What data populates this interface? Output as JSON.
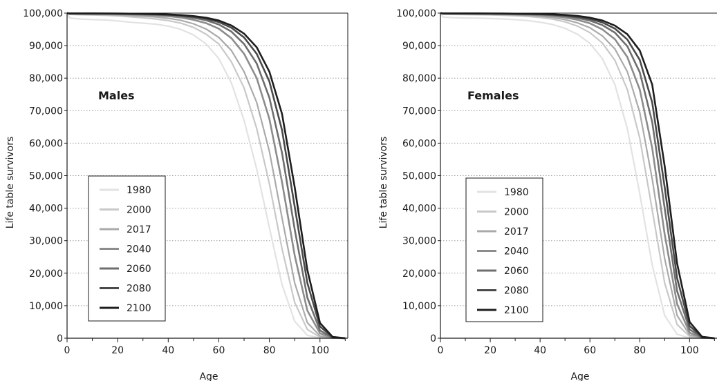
{
  "chart_data": [
    {
      "type": "line",
      "panel_label": "Males",
      "xlabel": "Age",
      "ylabel": "Life table survivors",
      "xlim": [
        0,
        111
      ],
      "ylim": [
        0,
        100000
      ],
      "x_ticks": [
        "0",
        "20",
        "40",
        "60",
        "80",
        "100"
      ],
      "y_ticks": [
        "0",
        "10,000",
        "20,000",
        "30,000",
        "40,000",
        "50,000",
        "60,000",
        "70,000",
        "80,000",
        "90,000",
        "100,000"
      ],
      "grid": "horizontal dotted",
      "legend_position": "lower-left",
      "x": [
        0,
        1,
        5,
        10,
        15,
        20,
        25,
        30,
        35,
        40,
        45,
        50,
        55,
        60,
        65,
        70,
        75,
        80,
        85,
        90,
        95,
        100,
        105,
        110
      ],
      "series": [
        {
          "name": "1980",
          "color": "#e2e2e2",
          "width": 2.2,
          "values": [
            100000,
            98500,
            98200,
            98000,
            97900,
            97600,
            97200,
            96900,
            96600,
            96000,
            95000,
            93300,
            90500,
            86000,
            78500,
            67000,
            52000,
            34000,
            16500,
            5200,
            900,
            100,
            0,
            0
          ]
        },
        {
          "name": "2000",
          "color": "#c8c8c8",
          "width": 2.2,
          "values": [
            100000,
            99600,
            99500,
            99400,
            99350,
            99150,
            98850,
            98550,
            98200,
            97700,
            96900,
            95600,
            93500,
            90500,
            85000,
            77000,
            64500,
            47500,
            27500,
            11000,
            2700,
            350,
            20,
            0
          ]
        },
        {
          "name": "2017",
          "color": "#aaaaaa",
          "width": 2.2,
          "values": [
            100000,
            99700,
            99650,
            99600,
            99550,
            99450,
            99250,
            99050,
            98800,
            98400,
            97800,
            96700,
            95100,
            92500,
            88500,
            82000,
            72500,
            57500,
            37000,
            17000,
            4800,
            700,
            40,
            0
          ]
        },
        {
          "name": "2040",
          "color": "#8c8c8c",
          "width": 2.6,
          "values": [
            100000,
            99800,
            99780,
            99760,
            99730,
            99680,
            99580,
            99450,
            99300,
            99050,
            98650,
            97950,
            96900,
            95200,
            92300,
            87500,
            80000,
            67500,
            48000,
            25500,
            8500,
            1500,
            100,
            0
          ]
        },
        {
          "name": "2060",
          "color": "#6e6e6e",
          "width": 2.6,
          "values": [
            100000,
            99850,
            99840,
            99830,
            99810,
            99780,
            99720,
            99630,
            99520,
            99350,
            99050,
            98550,
            97800,
            96500,
            94300,
            90500,
            84500,
            74000,
            57000,
            33500,
            12500,
            2400,
            200,
            0
          ]
        },
        {
          "name": "2080",
          "color": "#4a4a4a",
          "width": 2.6,
          "values": [
            100000,
            99900,
            99890,
            99880,
            99870,
            99840,
            99800,
            99730,
            99640,
            99510,
            99280,
            98880,
            98280,
            97250,
            95500,
            92500,
            87500,
            79000,
            64000,
            40500,
            17000,
            3600,
            300,
            0
          ]
        },
        {
          "name": "2100",
          "color": "#1e1e1e",
          "width": 2.6,
          "values": [
            100000,
            99920,
            99915,
            99910,
            99900,
            99880,
            99840,
            99790,
            99710,
            99600,
            99410,
            99080,
            98580,
            97720,
            96200,
            93700,
            89500,
            82000,
            69000,
            46500,
            21000,
            4700,
            400,
            0
          ]
        }
      ]
    },
    {
      "type": "line",
      "panel_label": "Females",
      "xlabel": "Age",
      "ylabel": "Life table survivors",
      "xlim": [
        0,
        111
      ],
      "ylim": [
        0,
        100000
      ],
      "x_ticks": [
        "0",
        "20",
        "40",
        "60",
        "80",
        "100"
      ],
      "y_ticks": [
        "0",
        "10,000",
        "20,000",
        "30,000",
        "40,000",
        "50,000",
        "60,000",
        "70,000",
        "80,000",
        "90,000",
        "100,000"
      ],
      "grid": "horizontal dotted",
      "legend_position": "lower-left",
      "x": [
        0,
        1,
        5,
        10,
        15,
        20,
        25,
        30,
        35,
        40,
        45,
        50,
        55,
        60,
        65,
        70,
        75,
        80,
        85,
        90,
        95,
        100,
        105,
        110
      ],
      "series": [
        {
          "name": "1980",
          "color": "#e2e2e2",
          "width": 2.2,
          "values": [
            100000,
            98800,
            98600,
            98500,
            98450,
            98350,
            98200,
            98000,
            97700,
            97200,
            96500,
            95300,
            93500,
            90700,
            86000,
            78000,
            64500,
            44500,
            22500,
            7000,
            1200,
            100,
            0,
            0
          ]
        },
        {
          "name": "2000",
          "color": "#c8c8c8",
          "width": 2.2,
          "values": [
            100000,
            99650,
            99600,
            99550,
            99500,
            99420,
            99320,
            99180,
            98980,
            98650,
            98150,
            97300,
            96000,
            94000,
            90800,
            85500,
            76500,
            61500,
            39500,
            17000,
            4200,
            500,
            30,
            0
          ]
        },
        {
          "name": "2017",
          "color": "#aaaaaa",
          "width": 2.2,
          "values": [
            100000,
            99750,
            99720,
            99690,
            99650,
            99600,
            99520,
            99420,
            99270,
            99030,
            98650,
            98000,
            97000,
            95500,
            93000,
            89000,
            82000,
            69500,
            49000,
            24500,
            7000,
            1000,
            60,
            0
          ]
        },
        {
          "name": "2040",
          "color": "#8c8c8c",
          "width": 2.6,
          "values": [
            100000,
            99830,
            99810,
            99790,
            99770,
            99740,
            99690,
            99620,
            99520,
            99360,
            99100,
            98650,
            97950,
            96850,
            95000,
            92000,
            86500,
            76500,
            58500,
            32000,
            10500,
            1700,
            120,
            0
          ]
        },
        {
          "name": "2060",
          "color": "#6e6e6e",
          "width": 2.6,
          "values": [
            100000,
            99880,
            99870,
            99860,
            99840,
            99820,
            99780,
            99730,
            99660,
            99550,
            99360,
            99040,
            98520,
            97700,
            96300,
            94000,
            89800,
            81800,
            66500,
            40000,
            14500,
            2700,
            220,
            0
          ]
        },
        {
          "name": "2080",
          "color": "#4a4a4a",
          "width": 2.6,
          "values": [
            100000,
            99910,
            99900,
            99890,
            99880,
            99860,
            99830,
            99790,
            99740,
            99660,
            99510,
            99260,
            98860,
            98220,
            97130,
            95250,
            91900,
            85600,
            72500,
            46500,
            18500,
            3800,
            350,
            0
          ]
        },
        {
          "name": "2100",
          "color": "#1e1e1e",
          "width": 2.6,
          "values": [
            100000,
            99930,
            99925,
            99920,
            99910,
            99895,
            99870,
            99840,
            99800,
            99740,
            99630,
            99440,
            99120,
            98600,
            97720,
            96150,
            93500,
            88500,
            78000,
            53000,
            23000,
            5000,
            450,
            0
          ]
        }
      ]
    }
  ]
}
